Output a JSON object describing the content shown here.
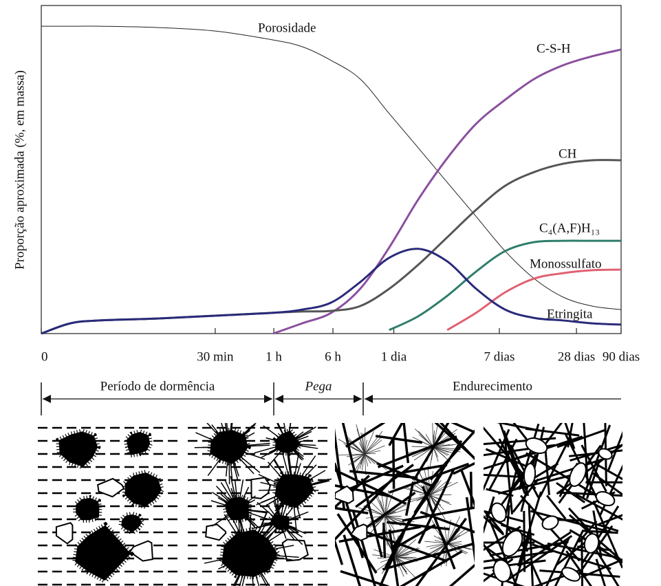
{
  "chart_data": {
    "type": "line",
    "y_label": "Proporção aproximada (%, em massa)",
    "x": [
      0,
      5,
      10,
      20,
      30,
      40,
      45,
      50,
      55,
      60,
      65,
      70,
      75,
      80,
      85,
      90,
      95,
      100
    ],
    "xlim": [
      0,
      100
    ],
    "xticks": [
      {
        "value": 0,
        "label": "0"
      },
      {
        "value": 30,
        "label": "30 min"
      },
      {
        "value": 40.1,
        "label": "1 h"
      },
      {
        "value": 50.3,
        "label": "6 h"
      },
      {
        "value": 60.8,
        "label": "1 dia"
      },
      {
        "value": 79,
        "label": "7 dias"
      },
      {
        "value": 92.3,
        "label": "28 dias"
      },
      {
        "value": 100,
        "label": "90 dias"
      }
    ],
    "ylim": [
      0,
      100
    ],
    "series": [
      {
        "name": "Porosidade",
        "color": "#222222",
        "values": [
          96.1,
          96.1,
          96.1,
          95.7,
          94.6,
          91.8,
          89.7,
          85.4,
          79.6,
          68.8,
          58.1,
          47.3,
          36.6,
          25.8,
          17.2,
          11.4,
          8.6,
          7.5
        ]
      },
      {
        "name": "C-S-H",
        "color": "#8a4f9e",
        "values": [
          null,
          null,
          null,
          null,
          null,
          0,
          3.2,
          6.5,
          14.0,
          26.9,
          41.9,
          54.8,
          65.6,
          73.1,
          79.6,
          83.9,
          86.7,
          88.8
        ]
      },
      {
        "name": "CH",
        "color": "#555555",
        "values": [
          0,
          3.2,
          4.1,
          4.7,
          5.6,
          6.5,
          6.9,
          7.1,
          8.6,
          14.0,
          21.5,
          30.1,
          38.7,
          46.2,
          50.5,
          53.1,
          54.2,
          54.2
        ]
      },
      {
        "name": "C₄(A,F)H₁₃",
        "color": "#2e7d6b",
        "values": [
          null,
          null,
          null,
          null,
          null,
          null,
          null,
          null,
          null,
          1.1,
          5.4,
          11.8,
          19.4,
          25.8,
          28.6,
          29.0,
          29.0,
          29.0
        ]
      },
      {
        "name": "Monossulfato",
        "color": "#e06070",
        "values": [
          null,
          null,
          null,
          null,
          null,
          null,
          null,
          null,
          null,
          null,
          null,
          1.1,
          6.5,
          12.9,
          17.2,
          18.9,
          19.8,
          20.0
        ]
      },
      {
        "name": "Etringita",
        "color": "#2a2a7a",
        "values": [
          0,
          3.2,
          4.1,
          4.7,
          5.6,
          6.5,
          7.5,
          9.7,
          16.1,
          23.7,
          26.5,
          22.6,
          14.0,
          7.5,
          4.9,
          4.1,
          3.2,
          2.8
        ]
      }
    ],
    "phases": [
      {
        "label": "Período de dormência"
      },
      {
        "label": "Pega"
      },
      {
        "label": "Endurecimento"
      }
    ]
  }
}
